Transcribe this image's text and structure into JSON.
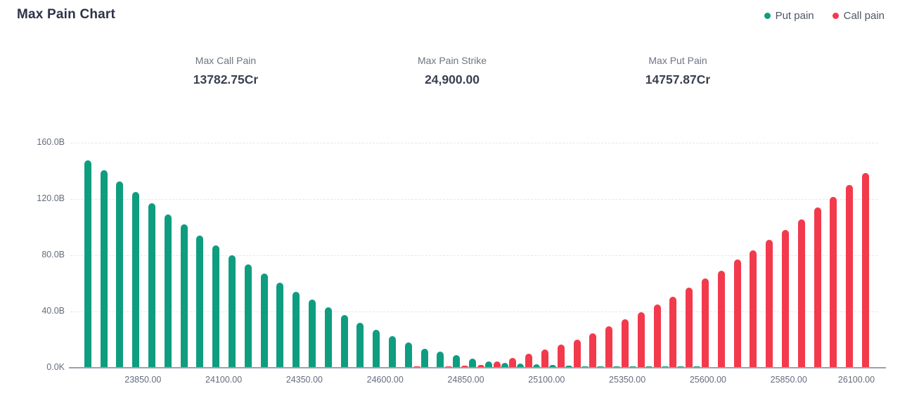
{
  "header": {
    "title": "Max Pain Chart"
  },
  "legend": {
    "items": [
      {
        "label": "Put pain",
        "color": "#0f9d80"
      },
      {
        "label": "Call pain",
        "color": "#f23a4c"
      }
    ]
  },
  "stats": [
    {
      "label": "Max Call Pain",
      "value": "13782.75Cr"
    },
    {
      "label": "Max Pain Strike",
      "value": "24,900.00"
    },
    {
      "label": "Max Put Pain",
      "value": "14757.87Cr"
    }
  ],
  "chart_data": {
    "type": "bar",
    "title": "Max Pain Chart",
    "xlabel": "",
    "ylabel": "",
    "ylim": [
      0,
      160
    ],
    "y_unit": "B",
    "grid": "horizontal-dashed",
    "legend_position": "top-right",
    "x": [
      23650,
      23700,
      23750,
      23800,
      23850,
      23900,
      23950,
      24000,
      24050,
      24100,
      24150,
      24200,
      24250,
      24300,
      24350,
      24400,
      24450,
      24500,
      24550,
      24600,
      24650,
      24700,
      24750,
      24800,
      24850,
      24900,
      24950,
      25000,
      25050,
      25100,
      25150,
      25200,
      25250,
      25300,
      25350,
      25400,
      25450,
      25500,
      25550,
      25600,
      25650,
      25700,
      25750,
      25800,
      25850,
      25900,
      25950,
      26000,
      26050,
      26100
    ],
    "series": [
      {
        "name": "Call pain",
        "color": "#f23a4c",
        "values": [
          0.1,
          0.1,
          0.1,
          0.1,
          0.1,
          0.1,
          0.2,
          0.2,
          0.2,
          0.2,
          0.3,
          0.3,
          0.3,
          0.4,
          0.4,
          0.4,
          0.5,
          0.5,
          0.6,
          0.6,
          0.7,
          0.8,
          0.6,
          0.8,
          1.3,
          2.1,
          4.5,
          6.8,
          9.8,
          13.2,
          16.5,
          20,
          24.5,
          29.5,
          34.5,
          39.5,
          45,
          50.5,
          57,
          63.5,
          69,
          77,
          83.5,
          91,
          98,
          105.5,
          114,
          121.5,
          130,
          138.5
        ]
      },
      {
        "name": "Put pain",
        "color": "#0f9d80",
        "values": [
          147.5,
          140.5,
          132.5,
          125,
          117,
          109,
          102,
          94,
          87,
          80,
          73.5,
          67,
          60.5,
          54,
          48.5,
          43,
          37.5,
          32,
          27,
          22.5,
          18,
          13.5,
          11.5,
          8.8,
          6.6,
          4.5,
          3.5,
          2.8,
          2.3,
          1.8,
          1.5,
          1.2,
          1.1,
          1,
          1,
          0.9,
          0.9,
          0.8,
          0.8,
          0.7,
          0.7,
          0.6,
          0.6,
          0.5,
          0.5,
          0.4,
          0.4,
          0.3,
          0.3,
          0.2
        ]
      }
    ],
    "y_ticks": [
      {
        "label": "0.0K",
        "value": 0
      },
      {
        "label": "40.0B",
        "value": 40
      },
      {
        "label": "80.0B",
        "value": 80
      },
      {
        "label": "120.0B",
        "value": 120
      },
      {
        "label": "160.0B",
        "value": 160
      }
    ],
    "x_ticks": [
      {
        "index": 4,
        "label": "23850.00"
      },
      {
        "index": 9,
        "label": "24100.00"
      },
      {
        "index": 14,
        "label": "24350.00"
      },
      {
        "index": 19,
        "label": "24600.00"
      },
      {
        "index": 24,
        "label": "24850.00"
      },
      {
        "index": 29,
        "label": "25100.00"
      },
      {
        "index": 34,
        "label": "25350.00"
      },
      {
        "index": 39,
        "label": "25600.00"
      },
      {
        "index": 44,
        "label": "25850.00"
      },
      {
        "index": 49,
        "label": "26100.00"
      }
    ]
  }
}
